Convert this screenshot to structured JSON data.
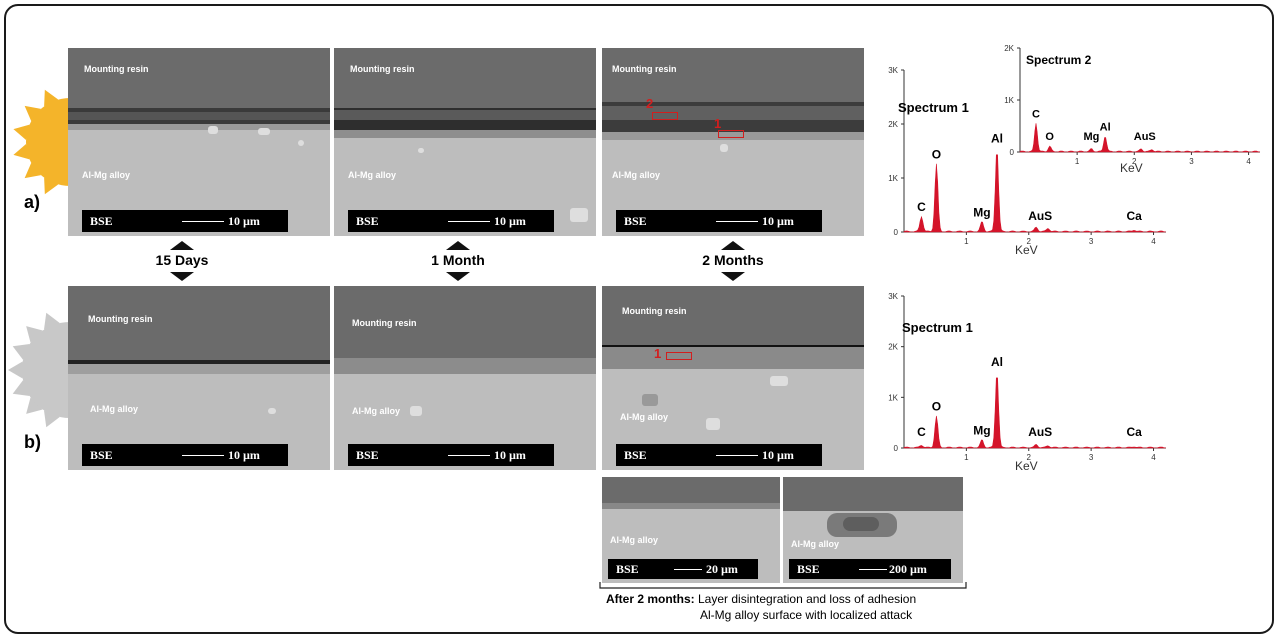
{
  "row_labels": {
    "a": "a)",
    "b": "b)"
  },
  "time_labels": [
    "15 Days",
    "1 Month",
    "2 Months"
  ],
  "panel_text": {
    "resin": "Mounting resin",
    "alloy": "Al-Mg alloy",
    "bse": "BSE",
    "scale_10": "10 µm",
    "scale_20": "20 µm",
    "scale_200": "200 µm"
  },
  "markers": {
    "one": "1",
    "two": "2"
  },
  "spectra": {
    "a_main": {
      "title": "Spectrum 1",
      "xlabel": "KeV",
      "yticks": [
        "3K",
        "2K",
        "1K",
        "0"
      ],
      "xticks": [
        "1",
        "2",
        "3",
        "4"
      ],
      "peaks": [
        {
          "label": "C",
          "x": 0.28,
          "y": 0.28
        },
        {
          "label": "O",
          "x": 0.52,
          "y": 1.25
        },
        {
          "label": "Mg",
          "x": 1.25,
          "y": 0.18
        },
        {
          "label": "Al",
          "x": 1.49,
          "y": 1.55
        },
        {
          "label": "Au",
          "x": 2.12,
          "y": 0.08
        },
        {
          "label": "S",
          "x": 2.31,
          "y": 0.06
        },
        {
          "label": "Ca",
          "x": 3.69,
          "y": 0.03
        }
      ]
    },
    "a_inset": {
      "title": "Spectrum 2",
      "xlabel": "KeV",
      "yticks": [
        "2K",
        "1K",
        "0"
      ],
      "xticks": [
        "1",
        "2",
        "3",
        "4"
      ],
      "peaks": [
        {
          "label": "C",
          "x": 0.28,
          "y": 0.55
        },
        {
          "label": "O",
          "x": 0.52,
          "y": 0.1
        },
        {
          "label": "Mg",
          "x": 1.25,
          "y": 0.05
        },
        {
          "label": "Al",
          "x": 1.49,
          "y": 0.3
        },
        {
          "label": "Au",
          "x": 2.12,
          "y": 0.05
        },
        {
          "label": "S",
          "x": 2.31,
          "y": 0.04
        }
      ]
    },
    "b_main": {
      "title": "Spectrum 1",
      "xlabel": "KeV",
      "yticks": [
        "3K",
        "2K",
        "1K",
        "0"
      ],
      "xticks": [
        "1",
        "2",
        "3",
        "4"
      ],
      "peaks": [
        {
          "label": "C",
          "x": 0.28,
          "y": 0.05
        },
        {
          "label": "O",
          "x": 0.52,
          "y": 0.62
        },
        {
          "label": "Mg",
          "x": 1.25,
          "y": 0.15
        },
        {
          "label": "Al",
          "x": 1.49,
          "y": 1.5
        },
        {
          "label": "Au",
          "x": 2.12,
          "y": 0.06
        },
        {
          "label": "S",
          "x": 2.31,
          "y": 0.04
        },
        {
          "label": "Ca",
          "x": 3.69,
          "y": 0.02
        }
      ]
    }
  },
  "caption": {
    "prefix": "After 2 months:",
    "line1": " Layer disintegration and loss of adhesion",
    "line2": "Al-Mg alloy surface with localized attack"
  },
  "colors": {
    "peak": "#d4142a",
    "sun_a": "#f4b42a",
    "sun_b": "#c8c8c8",
    "marker": "#d21e1e"
  }
}
